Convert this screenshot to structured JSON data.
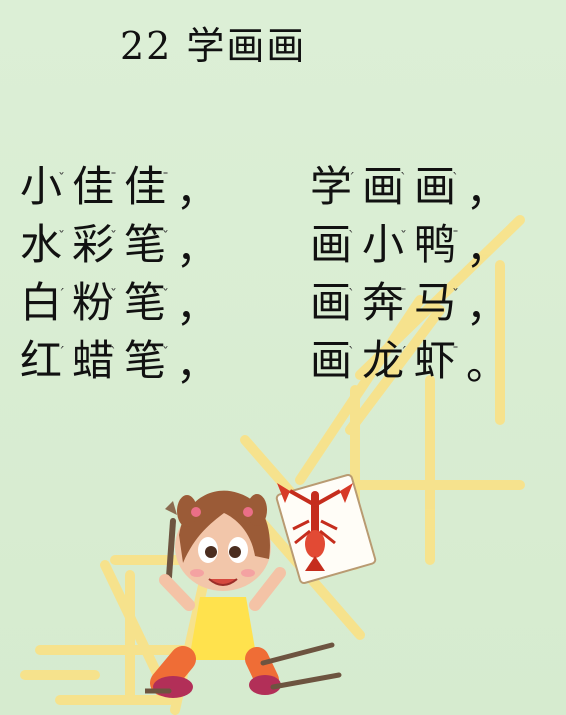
{
  "title": {
    "text": "22 学画画"
  },
  "poem": {
    "lines": [
      {
        "left": "小佳佳",
        "left_punct": "，",
        "right": "学画画",
        "right_punct": "，"
      },
      {
        "left": "水彩笔",
        "left_punct": "，",
        "right": "画小鸭",
        "right_punct": "，"
      },
      {
        "left": "白粉笔",
        "left_punct": "，",
        "right": "画奔马",
        "right_punct": "，"
      },
      {
        "left": "红蜡笔",
        "left_punct": "，",
        "right": "画龙虾",
        "right_punct": "。"
      }
    ]
  },
  "colors": {
    "background": "#d7ecd1",
    "watermark": "#ffe07a",
    "text": "#111111"
  },
  "icons": {
    "tone_marks": "pinyin-tone-glyphs",
    "illustration": "girl-with-pencil-and-lobster-drawing"
  }
}
